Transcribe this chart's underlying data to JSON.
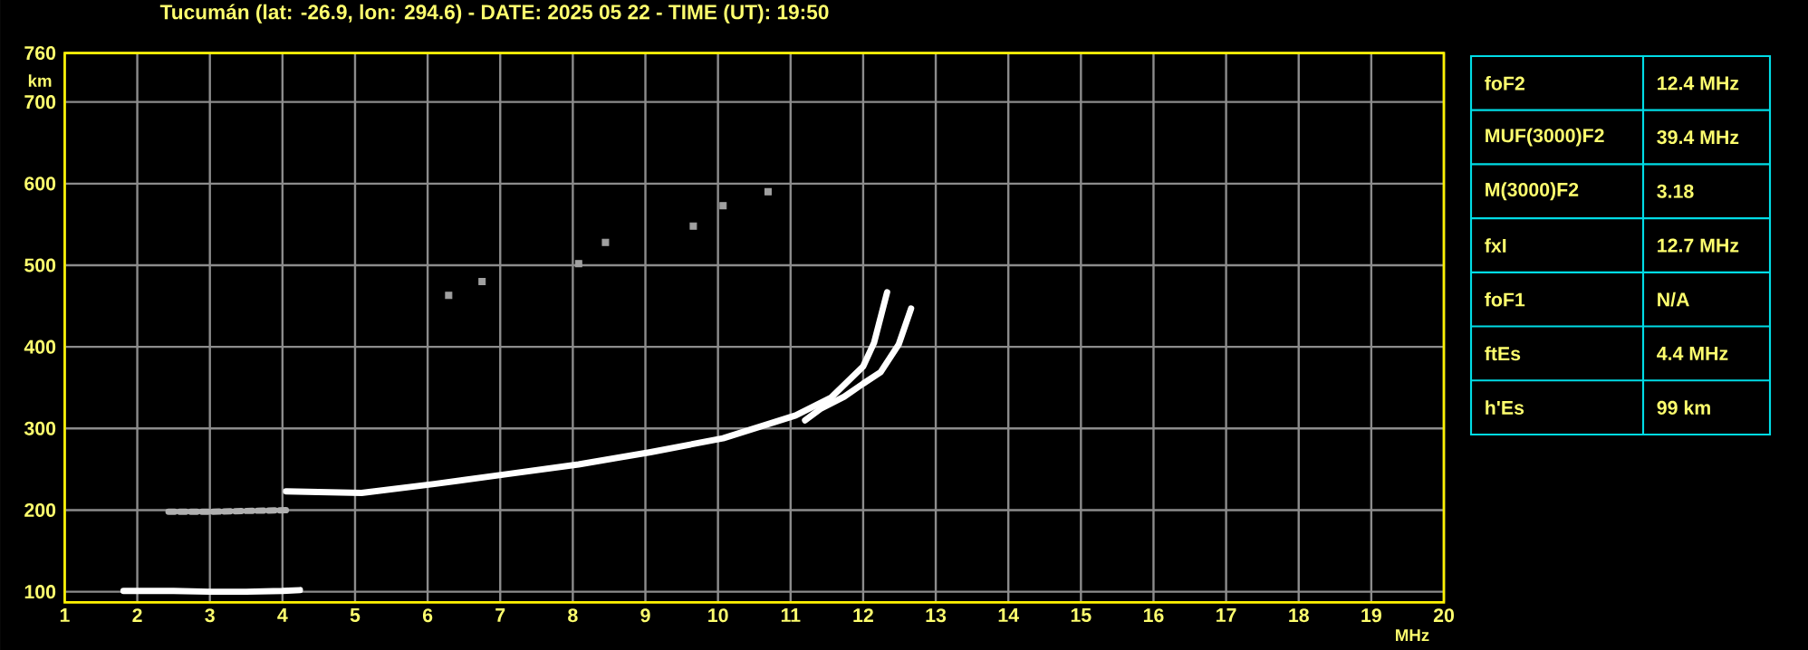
{
  "chart_data": [
    {
      "type": "line",
      "title": "Tucumán (lat: -26.9, lon: 294.6) - DATE: 2025 05 22 - TIME (UT): 19:50",
      "xlabel": "MHz",
      "ylabel": "km",
      "xlim": [
        1,
        20
      ],
      "ylim": [
        87,
        760
      ],
      "xticks": [
        1,
        2,
        3,
        4,
        5,
        6,
        7,
        8,
        9,
        10,
        11,
        12,
        13,
        14,
        15,
        16,
        17,
        18,
        19,
        20
      ],
      "yticks": [
        100,
        200,
        300,
        400,
        500,
        600,
        700,
        760
      ],
      "grid": true,
      "series": [
        {
          "type": "line",
          "color": "#ffffff",
          "x": [
            1.81,
            2.5,
            3.0,
            3.5,
            4.0,
            4.24
          ],
          "values": [
            101,
            101,
            100,
            100,
            101,
            102
          ]
        },
        {
          "type": "line",
          "line_style": "dotted",
          "color": "#b0b0b0",
          "x": [
            2.43,
            3.0,
            3.5,
            4.1
          ],
          "values": [
            198,
            198,
            199,
            200
          ]
        },
        {
          "type": "line",
          "color": "#ffffff",
          "x": [
            4.05,
            5.09,
            6.09,
            7.08,
            8.08,
            9.07,
            10.07,
            11.07,
            11.56,
            12.0,
            12.15,
            12.33
          ],
          "values": [
            223,
            221,
            232,
            244,
            256,
            271,
            288,
            316,
            338,
            376,
            405,
            467
          ]
        },
        {
          "type": "line",
          "color": "#ffffff",
          "x": [
            11.2,
            11.41,
            11.74,
            12.0,
            12.24,
            12.49,
            12.66
          ],
          "values": [
            310,
            324,
            339,
            355,
            369,
            403,
            447
          ]
        },
        {
          "type": "scatter",
          "marker": "square",
          "color": "#a0a0a0",
          "x": [
            6.29,
            6.75,
            8.08,
            8.45,
            9.66,
            10.07,
            10.69
          ],
          "values": [
            463,
            480,
            502,
            528,
            548,
            573,
            590
          ]
        }
      ]
    },
    {
      "type": "other",
      "categories": [
        "foF2",
        "MUF(3000)F2",
        "M(3000)F2",
        "fxI",
        "foF1",
        "ftEs",
        "h'Es"
      ],
      "annotations": [
        "12.4 MHz",
        "39.4 MHz",
        "3.18",
        "12.7 MHz",
        "N/A",
        "4.4 MHz",
        "99 km"
      ]
    }
  ]
}
